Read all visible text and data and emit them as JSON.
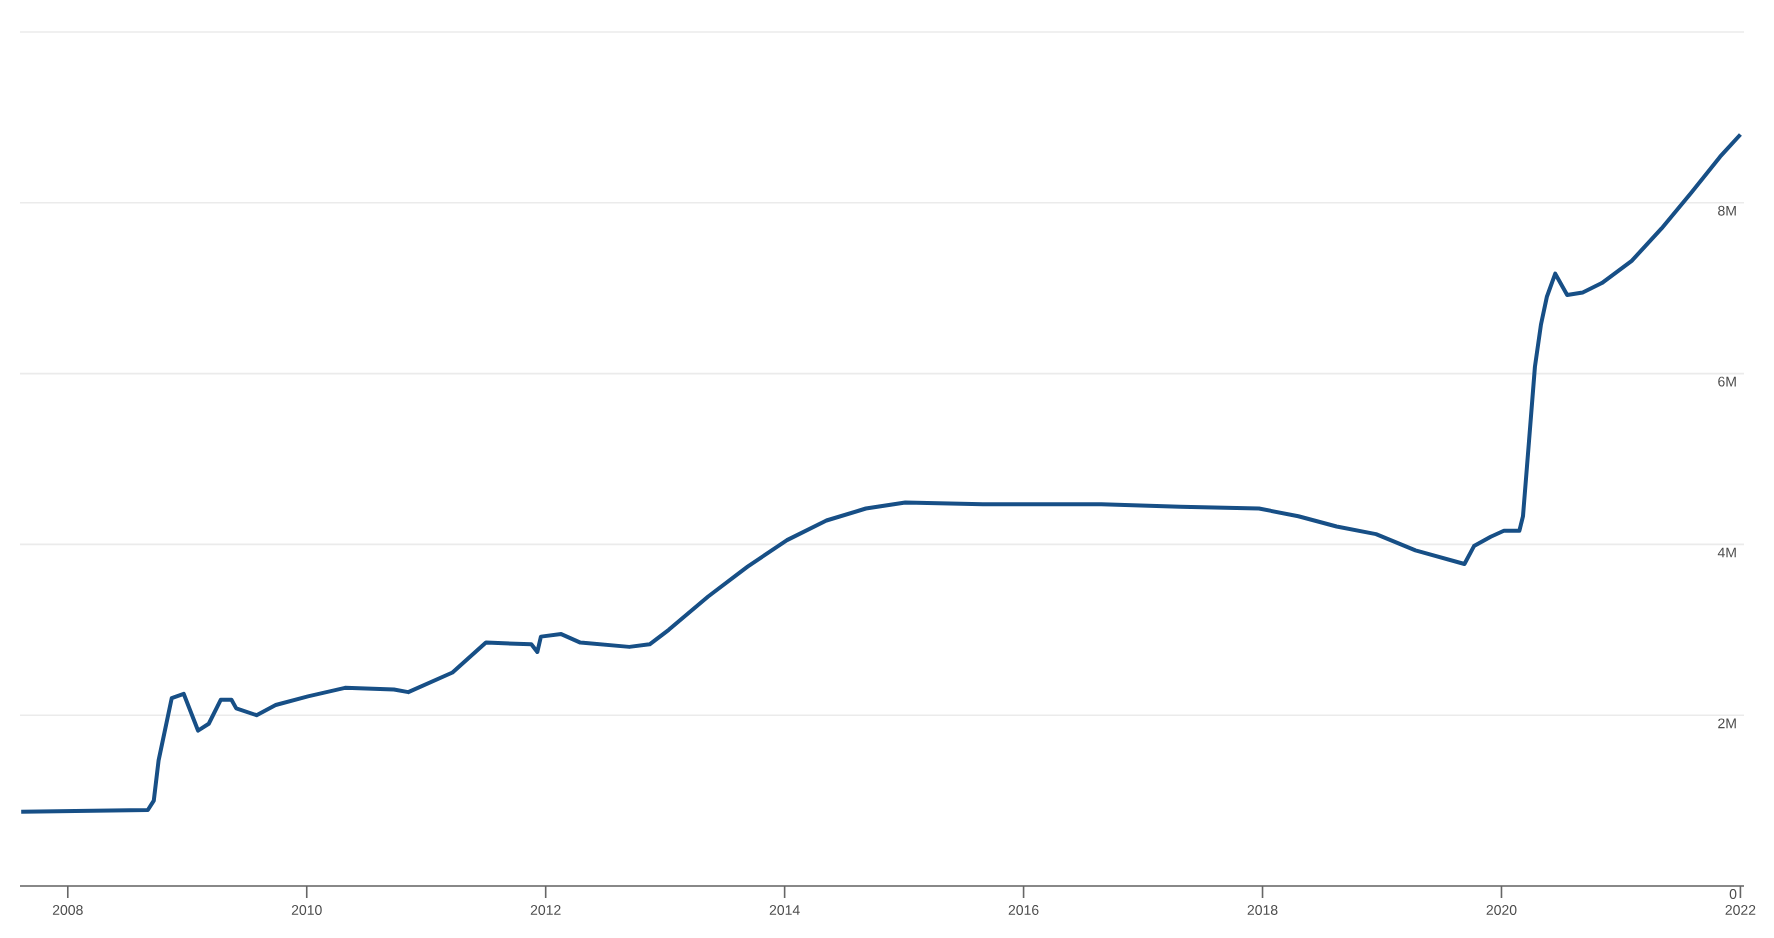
{
  "chart_data": {
    "type": "line",
    "xlim": [
      2007.6,
      2022.03
    ],
    "ylim": [
      0,
      10
    ],
    "xticks": [
      2008,
      2010,
      2012,
      2014,
      2016,
      2018,
      2020,
      2022
    ],
    "yticks": [
      {
        "value": 0,
        "label": "0"
      },
      {
        "value": 2,
        "label": "2M"
      },
      {
        "value": 4,
        "label": "4M"
      },
      {
        "value": 6,
        "label": "6M"
      },
      {
        "value": 8,
        "label": "8M"
      },
      {
        "value": 10,
        "label": null
      }
    ],
    "grid": "y",
    "color": "#174f86",
    "x": [
      2007.61,
      2008.67,
      2008.72,
      2008.76,
      2008.87,
      2008.97,
      2009.09,
      2009.18,
      2009.28,
      2009.37,
      2009.41,
      2009.58,
      2009.74,
      2010.01,
      2010.32,
      2010.73,
      2010.85,
      2011.22,
      2011.5,
      2011.88,
      2011.93,
      2011.96,
      2012.13,
      2012.29,
      2012.7,
      2012.87,
      2013.03,
      2013.36,
      2013.69,
      2014.02,
      2014.35,
      2014.68,
      2015.01,
      2015.66,
      2016.65,
      2017.31,
      2017.97,
      2018.3,
      2018.62,
      2018.95,
      2019.28,
      2019.69,
      2019.77,
      2019.91,
      2020.02,
      2020.15,
      2020.18,
      2020.23,
      2020.28,
      2020.33,
      2020.38,
      2020.45,
      2020.55,
      2020.68,
      2020.84,
      2021.09,
      2021.34,
      2021.59,
      2021.83,
      2022.0
    ],
    "values": [
      0.87,
      0.89,
      1.0,
      1.47,
      2.2,
      2.25,
      1.82,
      1.9,
      2.18,
      2.18,
      2.08,
      2.0,
      2.12,
      2.22,
      2.32,
      2.3,
      2.27,
      2.5,
      2.85,
      2.83,
      2.74,
      2.92,
      2.95,
      2.85,
      2.8,
      2.83,
      3.0,
      3.39,
      3.74,
      4.05,
      4.28,
      4.42,
      4.49,
      4.47,
      4.47,
      4.44,
      4.42,
      4.33,
      4.21,
      4.12,
      3.93,
      3.77,
      3.98,
      4.09,
      4.16,
      4.16,
      4.33,
      5.2,
      6.08,
      6.57,
      6.9,
      7.17,
      6.92,
      6.95,
      7.06,
      7.32,
      7.7,
      8.12,
      8.54,
      8.8
    ]
  }
}
